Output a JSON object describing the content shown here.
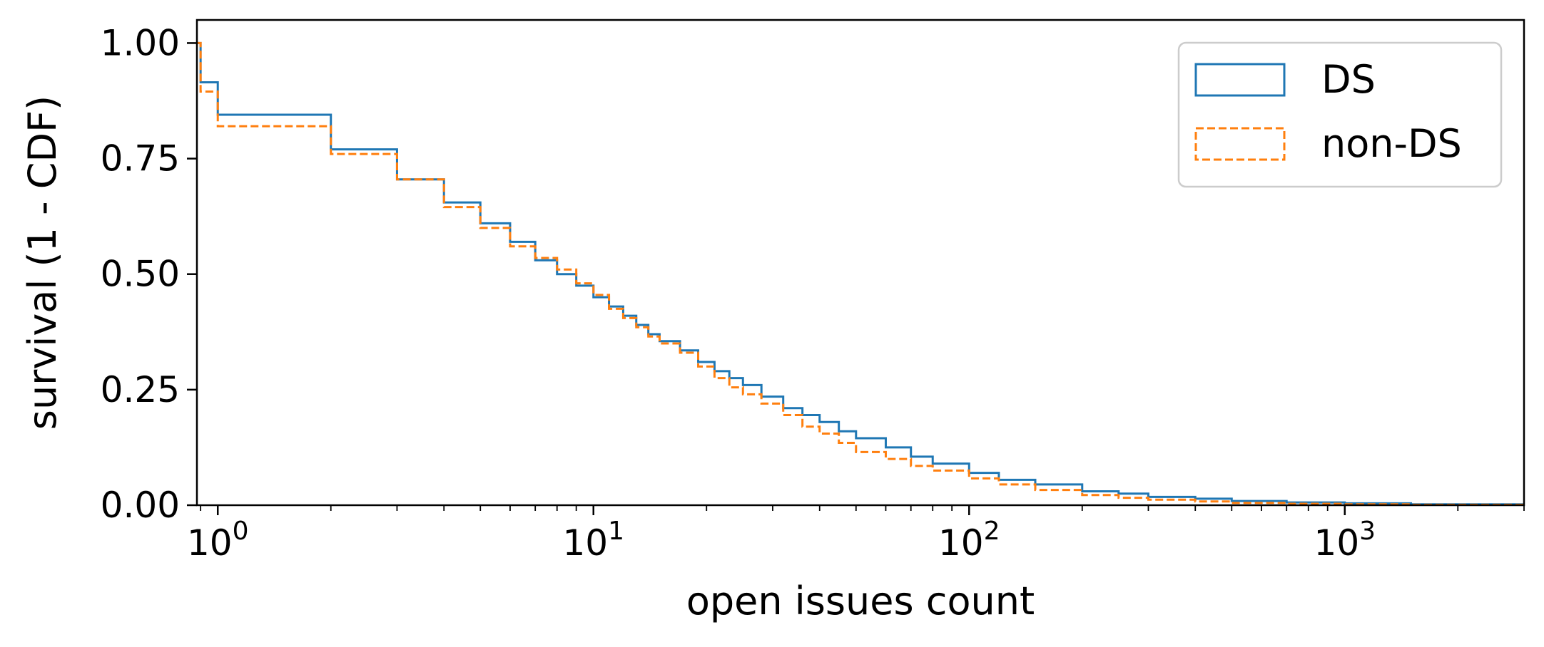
{
  "chart_data": {
    "type": "line",
    "title": "",
    "xlabel": "open issues count",
    "ylabel": "survival (1 - CDF)",
    "xscale": "log",
    "xlim": [
      0.88,
      3000
    ],
    "ylim": [
      0,
      1.05
    ],
    "xticks": [
      {
        "value": 1,
        "base": "10",
        "exp": "0"
      },
      {
        "value": 10,
        "base": "10",
        "exp": "1"
      },
      {
        "value": 100,
        "base": "10",
        "exp": "2"
      },
      {
        "value": 1000,
        "base": "10",
        "exp": "3"
      }
    ],
    "yticks": [
      {
        "value": 0,
        "label": "0.00"
      },
      {
        "value": 0.25,
        "label": "0.25"
      },
      {
        "value": 0.5,
        "label": "0.50"
      },
      {
        "value": 0.75,
        "label": "0.75"
      },
      {
        "value": 1.0,
        "label": "1.00"
      }
    ],
    "grid": false,
    "legend_position": "top-right",
    "series": [
      {
        "name": "DS",
        "color": "#1f77b4",
        "linestyle": "solid",
        "x": [
          0.88,
          0.9,
          1,
          2,
          3,
          4,
          5,
          6,
          7,
          8,
          9,
          10,
          11,
          12,
          13,
          14,
          15,
          17,
          19,
          21,
          23,
          25,
          28,
          32,
          36,
          40,
          45,
          50,
          60,
          70,
          80,
          100,
          120,
          150,
          200,
          250,
          300,
          400,
          500,
          700,
          1000,
          1500,
          3000
        ],
        "y": [
          1.0,
          0.915,
          0.845,
          0.77,
          0.705,
          0.655,
          0.61,
          0.57,
          0.53,
          0.5,
          0.475,
          0.45,
          0.43,
          0.41,
          0.39,
          0.37,
          0.355,
          0.335,
          0.31,
          0.29,
          0.275,
          0.26,
          0.235,
          0.21,
          0.195,
          0.18,
          0.16,
          0.145,
          0.125,
          0.105,
          0.09,
          0.07,
          0.055,
          0.045,
          0.03,
          0.025,
          0.018,
          0.014,
          0.009,
          0.006,
          0.004,
          0.002,
          0.001
        ]
      },
      {
        "name": "non-DS",
        "color": "#ff7f0e",
        "linestyle": "dashed",
        "x": [
          0.88,
          0.9,
          1,
          2,
          3,
          4,
          5,
          6,
          7,
          8,
          9,
          10,
          11,
          12,
          13,
          14,
          15,
          17,
          19,
          21,
          23,
          25,
          28,
          32,
          36,
          40,
          45,
          50,
          60,
          70,
          80,
          100,
          120,
          150,
          200,
          250,
          300,
          400,
          500,
          700,
          1000,
          1500,
          3000
        ],
        "y": [
          1.0,
          0.895,
          0.82,
          0.76,
          0.705,
          0.645,
          0.6,
          0.56,
          0.535,
          0.51,
          0.48,
          0.455,
          0.425,
          0.405,
          0.385,
          0.365,
          0.35,
          0.33,
          0.3,
          0.275,
          0.255,
          0.24,
          0.22,
          0.195,
          0.17,
          0.155,
          0.135,
          0.115,
          0.1,
          0.085,
          0.075,
          0.058,
          0.045,
          0.033,
          0.022,
          0.016,
          0.012,
          0.008,
          0.005,
          0.003,
          0.002,
          0.001,
          0.0
        ]
      }
    ]
  }
}
